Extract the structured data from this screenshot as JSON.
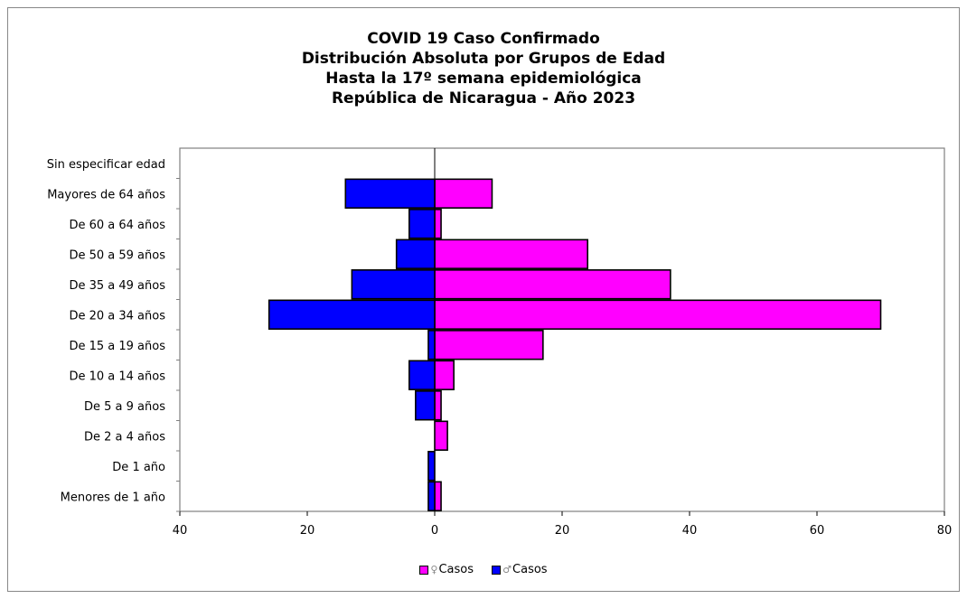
{
  "chart_data": {
    "type": "bar",
    "orientation": "horizontal",
    "title_lines": [
      "COVID 19 Caso Confirmado",
      "Distribución Absoluta por Grupos de Edad",
      "Hasta la 17º semana epidemiológica",
      "República de Nicaragua - Año 2023"
    ],
    "categories": [
      "Menores de 1 año",
      "De 1 año",
      "De 2 a 4 años",
      "De 5 a 9 años",
      "De 10 a 14 años",
      "De 15 a 19 años",
      "De 20 a 34 años",
      "De 35 a 49 años",
      "De 50 a 59 años",
      "De 60 a 64 años",
      "Mayores de 64 años",
      "Sin especificar edad"
    ],
    "series": [
      {
        "name": "Casos",
        "symbol": "♀",
        "side": "right",
        "color": "#ff00ff",
        "values": [
          1,
          0,
          2,
          1,
          3,
          17,
          70,
          37,
          24,
          1,
          9,
          0
        ]
      },
      {
        "name": "Casos",
        "symbol": "♂",
        "side": "left",
        "color": "#0000ff",
        "values": [
          1,
          1,
          0,
          3,
          4,
          1,
          26,
          13,
          6,
          4,
          14,
          0
        ]
      }
    ],
    "xlim": [
      -40,
      80
    ],
    "x_ticks": [
      -40,
      -20,
      0,
      20,
      40,
      60,
      80
    ],
    "x_tick_labels": [
      "40",
      "20",
      "0",
      "20",
      "40",
      "60",
      "80"
    ],
    "legend_position": "bottom",
    "grid": false
  }
}
